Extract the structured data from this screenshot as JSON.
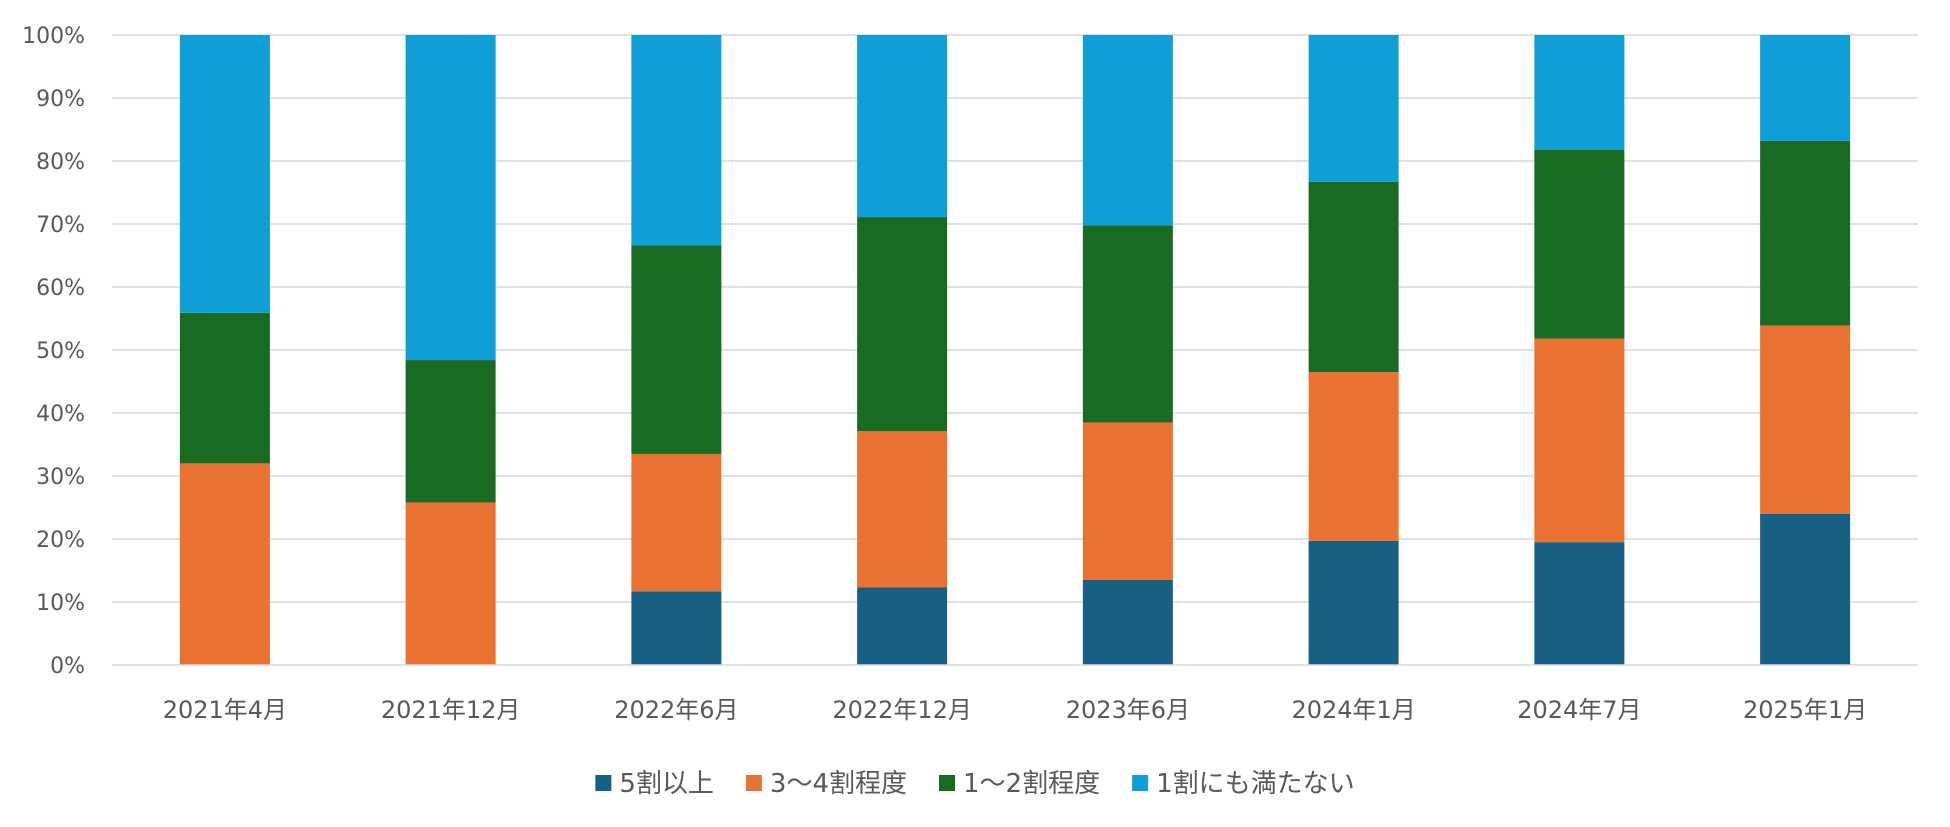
{
  "chart_data": {
    "type": "bar",
    "stacked": true,
    "categories": [
      "2021年4月",
      "2021年12月",
      "2022年6月",
      "2022年12月",
      "2023年6月",
      "2024年1月",
      "2024年7月",
      "2025年1月"
    ],
    "series": [
      {
        "name": "5割以上",
        "color": "#185F84",
        "values": [
          0,
          0,
          11.7,
          12.3,
          13.5,
          19.7,
          19.5,
          24.0
        ]
      },
      {
        "name": "3～4割程度",
        "color": "#E97132",
        "values": [
          32.0,
          25.8,
          21.8,
          24.8,
          25.0,
          26.8,
          32.3,
          29.9
        ]
      },
      {
        "name": "1～2割程度",
        "color": "#196B24",
        "values": [
          23.9,
          22.6,
          33.1,
          34.0,
          31.3,
          30.2,
          30.0,
          29.3
        ]
      },
      {
        "name": "1割にも満たない",
        "color": "#0F9ED5",
        "values": [
          44.1,
          51.6,
          33.4,
          28.9,
          30.2,
          23.3,
          18.2,
          16.8
        ]
      }
    ],
    "y_ticks": [
      "0%",
      "10%",
      "20%",
      "30%",
      "40%",
      "50%",
      "60%",
      "70%",
      "80%",
      "90%",
      "100%"
    ],
    "ylim": [
      0,
      100
    ],
    "grid": true,
    "legend_position": "bottom",
    "title": "",
    "xlabel": "",
    "ylabel": ""
  }
}
